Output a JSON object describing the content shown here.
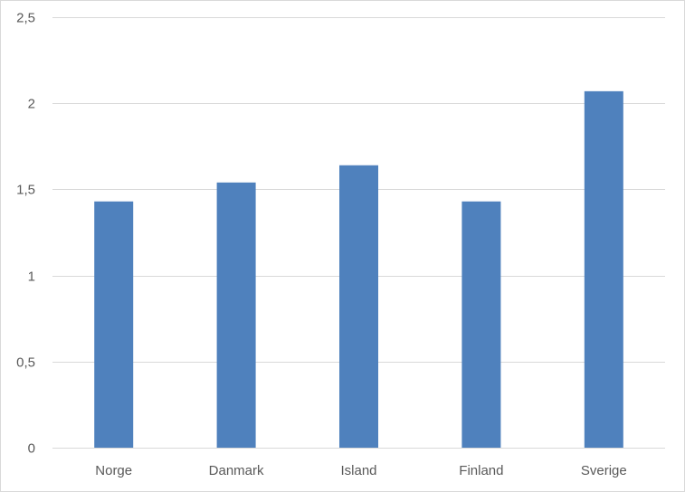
{
  "chart_data": {
    "type": "bar",
    "title": "",
    "xlabel": "",
    "ylabel": "",
    "categories": [
      "Norge",
      "Danmark",
      "Island",
      "Finland",
      "Sverige"
    ],
    "values": [
      1.43,
      1.54,
      1.64,
      1.43,
      2.07
    ],
    "ylim": [
      0,
      2.5
    ],
    "yticks": [
      0,
      0.5,
      1,
      1.5,
      2,
      2.5
    ],
    "ytick_labels": [
      "0",
      "0,5",
      "1",
      "1,5",
      "2",
      "2,5"
    ],
    "grid": true,
    "legend": "none",
    "colors": {
      "bar": "#4f81bd",
      "grid": "#d9d9d9",
      "axis_text": "#595959"
    }
  }
}
